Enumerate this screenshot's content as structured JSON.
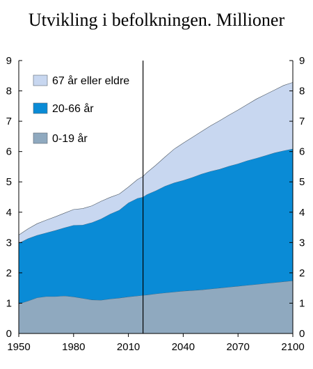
{
  "chart_data": {
    "type": "area",
    "stacked": true,
    "title": "Utvikling i befolkningen. Millioner",
    "xlabel": "",
    "ylabel": "",
    "xlim": [
      1950,
      2100
    ],
    "ylim": [
      0,
      9
    ],
    "x_ticks": [
      1950,
      1980,
      2010,
      2040,
      2070,
      2100
    ],
    "y_ticks": [
      0,
      1,
      2,
      3,
      4,
      5,
      6,
      7,
      8,
      9
    ],
    "grid": false,
    "legend_position": "top-left",
    "forecast_line_x": 2018,
    "x": [
      1950,
      1955,
      1960,
      1965,
      1970,
      1975,
      1980,
      1985,
      1990,
      1995,
      2000,
      2005,
      2010,
      2015,
      2018,
      2020,
      2025,
      2030,
      2035,
      2040,
      2045,
      2050,
      2055,
      2060,
      2065,
      2070,
      2075,
      2080,
      2085,
      2090,
      2095,
      2100
    ],
    "series": [
      {
        "name": "0-19 år",
        "color": "#8fa9bf",
        "values": [
          0.98,
          1.07,
          1.18,
          1.22,
          1.22,
          1.24,
          1.21,
          1.16,
          1.11,
          1.1,
          1.14,
          1.17,
          1.21,
          1.24,
          1.26,
          1.27,
          1.31,
          1.34,
          1.37,
          1.4,
          1.42,
          1.44,
          1.47,
          1.5,
          1.53,
          1.56,
          1.59,
          1.62,
          1.65,
          1.68,
          1.71,
          1.74
        ]
      },
      {
        "name": "20-66 år",
        "color": "#0a8bd6",
        "values": [
          2.0,
          2.06,
          2.06,
          2.1,
          2.18,
          2.25,
          2.36,
          2.42,
          2.55,
          2.68,
          2.8,
          2.9,
          3.1,
          3.22,
          3.24,
          3.31,
          3.4,
          3.52,
          3.6,
          3.65,
          3.73,
          3.82,
          3.88,
          3.92,
          3.99,
          4.04,
          4.11,
          4.16,
          4.22,
          4.28,
          4.32,
          4.35
        ]
      },
      {
        "name": "67 år eller eldre",
        "color": "#c8d7f0",
        "values": [
          0.27,
          0.32,
          0.38,
          0.42,
          0.45,
          0.48,
          0.52,
          0.54,
          0.55,
          0.58,
          0.55,
          0.53,
          0.52,
          0.62,
          0.68,
          0.72,
          0.84,
          0.96,
          1.11,
          1.23,
          1.32,
          1.4,
          1.5,
          1.6,
          1.68,
          1.77,
          1.85,
          1.95,
          2.01,
          2.07,
          2.15,
          2.19
        ]
      }
    ]
  },
  "legend": [
    {
      "label": "67 år eller eldre",
      "color": "#c8d7f0"
    },
    {
      "label": "20-66 år",
      "color": "#0a8bd6"
    },
    {
      "label": "0-19 år",
      "color": "#8fa9bf"
    }
  ]
}
